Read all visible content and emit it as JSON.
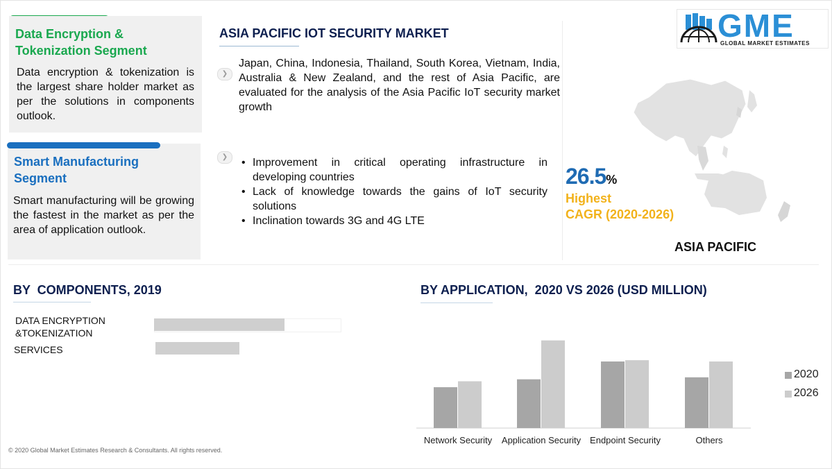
{
  "logo": {
    "letters": "GME",
    "subtitle": "GLOBAL MARKET ESTIMATES",
    "color": "#2b8fd6"
  },
  "colors": {
    "green": "#1aa84f",
    "blue": "#1a6fbf",
    "navy": "#0d1f4f",
    "gold": "#f2b21b",
    "bar_dark": "#a6a6a6",
    "bar_light": "#cccccc"
  },
  "left": {
    "box1": {
      "title": "Data Encryption & Tokenization Segment",
      "text": "Data encryption & tokenization is the largest share holder market as per the solutions in components outlook."
    },
    "box2": {
      "title": "Smart Manufacturing Segment",
      "text": "Smart manufacturing will be growing the fastest in the market as per the area of application outlook."
    }
  },
  "middle": {
    "title": "ASIA PACIFIC IOT SECURITY MARKET",
    "para": "Japan, China, Indonesia, Thailand, South Korea, Vietnam, India, Australia & New Zealand, and the rest of Asia Pacific, are evaluated for the analysis of the Asia Pacific IoT security market growth",
    "points": [
      "Improvement in critical operating infrastructure in developing countries",
      "Lack of knowledge towards the gains of IoT security solutions",
      "Inclination towards 3G and 4G LTE"
    ],
    "bullet_icon": "chevron-right-icon"
  },
  "stats": {
    "cagr_value": "26.5",
    "cagr_unit": "%",
    "label1": "Highest",
    "label2": "CAGR (2020-2026)",
    "region": "ASIA PACIFIC"
  },
  "footer": "© 2020 Global Market Estimates Research & Consultants. All rights reserved.",
  "chart_data": [
    {
      "type": "bar",
      "orientation": "horizontal",
      "title": "BY  COMPONENTS, 2019",
      "categories": [
        "DATA ENCRYPTION &TOKENIZATION",
        "SERVICES"
      ],
      "values": [
        0.7,
        0.45
      ],
      "xlim": [
        0,
        1
      ],
      "grid": false,
      "legend": "none"
    },
    {
      "type": "bar",
      "title": "BY APPLICATION,  2020 VS 2026 (USD MILLION)",
      "categories": [
        "Network Security",
        "Application Security",
        "Endpoint Security",
        "Others"
      ],
      "series": [
        {
          "name": "2020",
          "values": [
            62,
            74,
            101,
            77
          ],
          "color": "#a6a6a6"
        },
        {
          "name": "2026",
          "values": [
            71,
            133,
            103,
            101
          ],
          "color": "#cccccc"
        }
      ],
      "ylim": [
        0,
        140
      ],
      "grid": false,
      "legend": "right"
    }
  ]
}
